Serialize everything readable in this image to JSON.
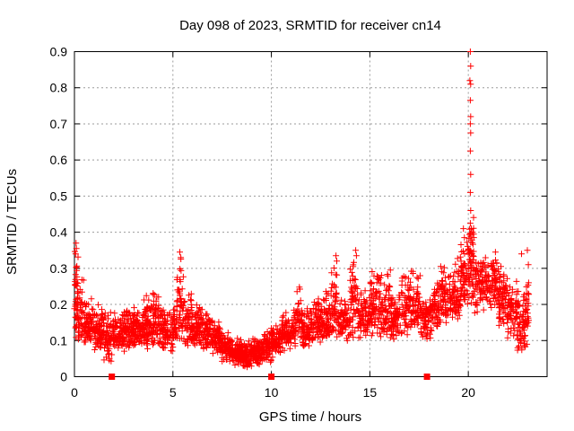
{
  "window": {
    "background": "#ffffff"
  },
  "style": {
    "accent_color": "#ff0000",
    "axis_color": "#000000",
    "grid_color": "#9b9b9b",
    "text_color": "#000000"
  },
  "chart_data": {
    "type": "scatter",
    "title": "Day 098 of 2023, SRMTID for receiver cn14",
    "xlabel": "GPS time / hours",
    "ylabel": "SRMTID / TECUs",
    "xlim": [
      0,
      24
    ],
    "ylim": [
      0,
      0.9
    ],
    "xticks": [
      0,
      5,
      10,
      15,
      20
    ],
    "yticks": [
      0,
      0.1,
      0.2,
      0.3,
      0.4,
      0.5,
      0.6,
      0.7,
      0.8,
      0.9
    ],
    "grid": true,
    "legend": "none",
    "series": [
      {
        "name": "SRMTID",
        "marker": "plus",
        "color": "#ff0000",
        "density_bins": [
          [
            0.0,
            0.2,
            0.15,
            0.37,
            25
          ],
          [
            0.05,
            0.5,
            0.1,
            0.28,
            55
          ],
          [
            0.5,
            1.0,
            0.09,
            0.22,
            80
          ],
          [
            1.0,
            1.5,
            0.07,
            0.2,
            80
          ],
          [
            1.5,
            1.95,
            0.04,
            0.19,
            60
          ],
          [
            1.95,
            2.5,
            0.07,
            0.18,
            75
          ],
          [
            2.5,
            3.0,
            0.07,
            0.2,
            80
          ],
          [
            3.0,
            3.5,
            0.08,
            0.2,
            80
          ],
          [
            3.5,
            4.0,
            0.07,
            0.23,
            80
          ],
          [
            4.0,
            4.3,
            0.08,
            0.26,
            45
          ],
          [
            4.3,
            5.0,
            0.07,
            0.2,
            90
          ],
          [
            5.0,
            5.2,
            0.08,
            0.2,
            30
          ],
          [
            5.2,
            5.6,
            0.1,
            0.34,
            55
          ],
          [
            5.6,
            6.0,
            0.08,
            0.24,
            55
          ],
          [
            6.0,
            6.5,
            0.08,
            0.2,
            75
          ],
          [
            6.5,
            7.0,
            0.07,
            0.18,
            75
          ],
          [
            7.0,
            7.5,
            0.06,
            0.16,
            75
          ],
          [
            7.5,
            8.0,
            0.04,
            0.13,
            75
          ],
          [
            8.0,
            8.5,
            0.03,
            0.11,
            80
          ],
          [
            8.5,
            9.0,
            0.025,
            0.1,
            80
          ],
          [
            9.0,
            9.5,
            0.03,
            0.11,
            80
          ],
          [
            9.5,
            10.0,
            0.04,
            0.13,
            75
          ],
          [
            10.0,
            10.5,
            0.05,
            0.15,
            70
          ],
          [
            10.5,
            11.0,
            0.07,
            0.18,
            70
          ],
          [
            11.0,
            11.3,
            0.08,
            0.2,
            40
          ],
          [
            11.3,
            11.55,
            0.1,
            0.26,
            30
          ],
          [
            11.55,
            12.0,
            0.08,
            0.19,
            60
          ],
          [
            12.0,
            12.5,
            0.09,
            0.22,
            70
          ],
          [
            12.5,
            13.0,
            0.1,
            0.25,
            70
          ],
          [
            13.0,
            13.4,
            0.1,
            0.33,
            50
          ],
          [
            13.4,
            14.0,
            0.1,
            0.23,
            70
          ],
          [
            14.0,
            14.4,
            0.1,
            0.35,
            50
          ],
          [
            14.4,
            15.0,
            0.1,
            0.25,
            70
          ],
          [
            15.0,
            15.5,
            0.11,
            0.3,
            70
          ],
          [
            15.5,
            16.1,
            0.1,
            0.33,
            75
          ],
          [
            16.1,
            16.6,
            0.1,
            0.25,
            65
          ],
          [
            16.6,
            17.1,
            0.11,
            0.3,
            65
          ],
          [
            17.1,
            17.6,
            0.12,
            0.3,
            65
          ],
          [
            17.6,
            18.1,
            0.1,
            0.26,
            65
          ],
          [
            18.1,
            18.6,
            0.12,
            0.28,
            65
          ],
          [
            18.6,
            19.1,
            0.14,
            0.31,
            65
          ],
          [
            19.1,
            19.6,
            0.15,
            0.33,
            65
          ],
          [
            19.6,
            20.0,
            0.18,
            0.4,
            55
          ],
          [
            20.0,
            20.3,
            0.2,
            0.47,
            60
          ],
          [
            20.3,
            20.9,
            0.17,
            0.36,
            70
          ],
          [
            20.9,
            21.5,
            0.19,
            0.36,
            75
          ],
          [
            21.5,
            22.0,
            0.14,
            0.31,
            70
          ],
          [
            22.0,
            22.5,
            0.1,
            0.28,
            70
          ],
          [
            22.5,
            23.0,
            0.07,
            0.27,
            65
          ],
          [
            22.95,
            23.1,
            0.12,
            0.3,
            20
          ]
        ],
        "outliers": [
          [
            0.08,
            0.37
          ],
          [
            0.1,
            0.355
          ],
          [
            0.06,
            0.34
          ],
          [
            5.35,
            0.345
          ],
          [
            5.4,
            0.33
          ],
          [
            13.28,
            0.335
          ],
          [
            13.32,
            0.32
          ],
          [
            14.28,
            0.35
          ],
          [
            14.32,
            0.335
          ],
          [
            19.75,
            0.41
          ],
          [
            19.8,
            0.385
          ],
          [
            20.1,
            0.9
          ],
          [
            20.12,
            0.86
          ],
          [
            20.08,
            0.82
          ],
          [
            20.12,
            0.81
          ],
          [
            20.1,
            0.765
          ],
          [
            20.12,
            0.72
          ],
          [
            20.1,
            0.7
          ],
          [
            20.12,
            0.675
          ],
          [
            20.1,
            0.625
          ],
          [
            20.12,
            0.56
          ],
          [
            20.1,
            0.51
          ],
          [
            20.12,
            0.46
          ],
          [
            20.1,
            0.425
          ],
          [
            20.15,
            0.41
          ],
          [
            20.22,
            0.4
          ],
          [
            20.28,
            0.385
          ],
          [
            22.7,
            0.34
          ],
          [
            23.0,
            0.35
          ],
          [
            23.05,
            0.31
          ]
        ]
      }
    ],
    "event_markers": {
      "name": "data-gap-flags",
      "marker": "filled-square",
      "color": "#ff0000",
      "y": 0,
      "x": [
        1.9,
        10.0,
        17.9
      ]
    }
  }
}
